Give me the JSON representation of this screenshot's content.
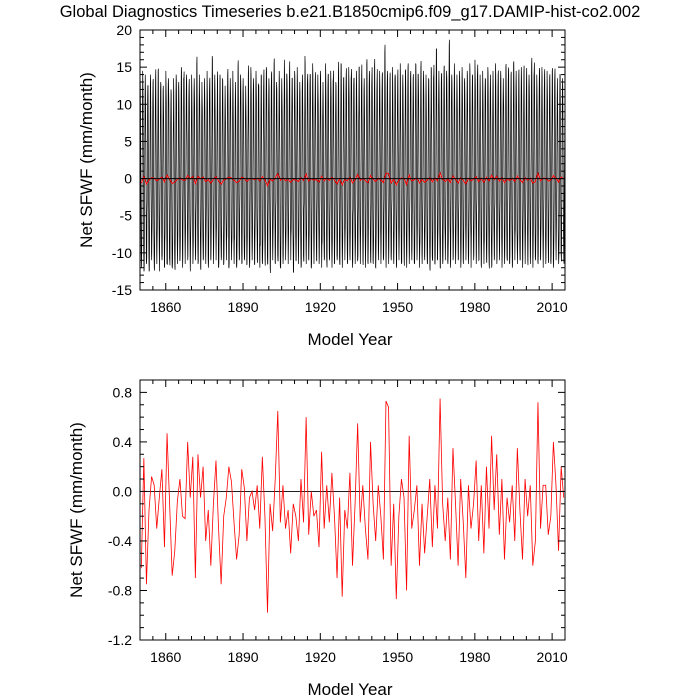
{
  "title": "Global Diagnostics Timeseries b.e21.B1850cmip6.f09_g17.DAMIP-hist-co2.002",
  "colors": {
    "monthly_line": "#000000",
    "annual_line": "#ff0000",
    "zero_line": "#000000",
    "frame": "#000000"
  },
  "chart_data": [
    {
      "id": "monthly",
      "type": "line",
      "xlabel": "Model Year",
      "ylabel": "Net SFWF (mm/month)",
      "xlim": [
        1850,
        2015
      ],
      "ylim": [
        -15,
        20
      ],
      "x_major_ticks": [
        1860,
        1890,
        1920,
        1950,
        1980,
        2010
      ],
      "y_major_ticks": [
        -15,
        -10,
        -5,
        0,
        5,
        10,
        15,
        20
      ],
      "reference_line_y": 0,
      "series": [
        {
          "role": "monthly",
          "color": "#000000",
          "sampling": "monthly",
          "x_start": 1850,
          "x_end": 2014,
          "seasonal_max_values": [
            13.5,
            14.5,
            14.0,
            12.5,
            14.0,
            13.0,
            13.5,
            14.5,
            13.0,
            12.5,
            14.5,
            13.5,
            12.0,
            13.5,
            14.0,
            13.0,
            15.0,
            13.5,
            14.0,
            12.5,
            14.0,
            13.5,
            15.5,
            14.0,
            13.0,
            13.5,
            14.5,
            13.0,
            16.5,
            14.0,
            13.5,
            14.0,
            13.5,
            12.5,
            14.0,
            13.5,
            14.5,
            13.0,
            15.0,
            14.0,
            13.5,
            12.5,
            14.0,
            15.0,
            13.5,
            14.5,
            12.5,
            14.0,
            13.5,
            15.0,
            13.5,
            14.0,
            15.5,
            13.0,
            14.5,
            13.5,
            16.0,
            14.0,
            14.5,
            13.5,
            14.5,
            15.0,
            13.0,
            14.0,
            16.5,
            13.5,
            14.0,
            15.5,
            13.5,
            14.0,
            14.5,
            13.0,
            15.5,
            14.0,
            14.5,
            13.5,
            13.0,
            14.5,
            15.5,
            13.5,
            14.0,
            15.0,
            14.0,
            13.5,
            14.5,
            15.0,
            14.0,
            13.5,
            15.5,
            14.5,
            14.0,
            15.0,
            13.5,
            14.5,
            14.0,
            17.0,
            14.5,
            13.5,
            15.0,
            14.0,
            13.5,
            15.5,
            14.0,
            14.5,
            15.0,
            14.0,
            13.5,
            15.5,
            14.0,
            15.0,
            14.5,
            14.0,
            13.5,
            15.0,
            14.0,
            17.5,
            14.5,
            14.0,
            15.0,
            14.5,
            18.0,
            14.0,
            15.5,
            14.0,
            14.5,
            15.0,
            13.5,
            14.5,
            15.5,
            14.0,
            16.0,
            14.5,
            14.0,
            14.5,
            13.5,
            15.0,
            14.0,
            14.5,
            15.5,
            14.0,
            14.5,
            13.5,
            15.0,
            14.5,
            14.0,
            15.5,
            14.5,
            14.0,
            15.0,
            14.5,
            13.5,
            14.0,
            15.5,
            14.5,
            14.0,
            14.5,
            15.0,
            14.0,
            14.5,
            13.5,
            14.5,
            14.0,
            13.5,
            14.0,
            13.5
          ],
          "seasonal_min_values": [
            -12.0,
            -12.5,
            -11.5,
            -12.5,
            -11.0,
            -12.0,
            -11.5,
            -12.5,
            -11.0,
            -12.0,
            -11.5,
            -11.0,
            -12.0,
            -12.0,
            -11.5,
            -11.0,
            -12.0,
            -11.5,
            -11.0,
            -12.5,
            -11.5,
            -11.0,
            -11.5,
            -12.0,
            -11.0,
            -11.5,
            -12.0,
            -11.0,
            -11.5,
            -11.0,
            -12.0,
            -11.0,
            -11.5,
            -11.0,
            -12.0,
            -11.0,
            -11.5,
            -12.0,
            -11.0,
            -11.5,
            -11.0,
            -11.5,
            -12.0,
            -11.0,
            -11.5,
            -11.0,
            -12.0,
            -11.5,
            -11.0,
            -11.5,
            -12.0,
            -11.0,
            -11.5,
            -11.0,
            -12.0,
            -11.5,
            -11.0,
            -11.5,
            -11.0,
            -12.5,
            -11.0,
            -11.5,
            -12.0,
            -11.0,
            -11.5,
            -11.0,
            -12.0,
            -11.5,
            -11.0,
            -11.5,
            -12.0,
            -11.0,
            -11.5,
            -11.0,
            -12.0,
            -11.5,
            -11.0,
            -11.5,
            -12.0,
            -11.0,
            -11.5,
            -11.0,
            -12.0,
            -11.5,
            -11.0,
            -11.5,
            -11.0,
            -12.0,
            -11.5,
            -11.0,
            -11.5,
            -12.0,
            -11.0,
            -11.5,
            -11.0,
            -12.0,
            -11.5,
            -11.0,
            -11.5,
            -12.0,
            -11.0,
            -11.5,
            -11.0,
            -12.0,
            -11.5,
            -11.0,
            -11.5,
            -11.0,
            -12.0,
            -11.5,
            -11.0,
            -11.5,
            -12.0,
            -11.0,
            -11.5,
            -11.0,
            -12.0,
            -11.5,
            -11.0,
            -11.5,
            -12.0,
            -11.0,
            -11.5,
            -11.0,
            -12.0,
            -11.5,
            -11.0,
            -11.5,
            -12.0,
            -11.0,
            -11.5,
            -11.0,
            -12.0,
            -11.5,
            -11.0,
            -11.5,
            -12.0,
            -11.0,
            -11.5,
            -11.0,
            -12.0,
            -11.5,
            -11.0,
            -11.5,
            -12.0,
            -11.0,
            -11.5,
            -11.0,
            -12.0,
            -11.5,
            -11.0,
            -11.5,
            -12.0,
            -11.0,
            -11.5,
            -11.0,
            -12.0,
            -11.5,
            -11.0,
            -11.5,
            -12.0,
            -11.0,
            -11.5,
            -10.5,
            -11.0
          ]
        },
        {
          "role": "annual-mean",
          "color": "#ff0000",
          "x_start": 1850,
          "x_end": 2014,
          "values": [
            -0.62,
            0.27,
            -0.75,
            -0.15,
            0.12,
            0.05,
            -0.3,
            -0.05,
            0.18,
            -0.45,
            0.47,
            -0.1,
            -0.68,
            -0.48,
            -0.08,
            0.1,
            -0.2,
            -0.22,
            0.4,
            -0.05,
            0.28,
            -0.7,
            0.3,
            -0.05,
            0.2,
            -0.4,
            -0.15,
            -0.6,
            -0.1,
            0.25,
            -0.3,
            -0.75,
            -0.2,
            -0.05,
            0.2,
            0.08,
            -0.25,
            -0.55,
            -0.35,
            0.18,
            0.03,
            -0.4,
            -0.05,
            0.0,
            -0.15,
            0.05,
            -0.3,
            0.28,
            -0.2,
            -0.98,
            -0.1,
            -0.32,
            0.1,
            0.65,
            -0.25,
            0.05,
            -0.3,
            -0.15,
            -0.5,
            -0.1,
            -0.2,
            -0.4,
            0.1,
            -0.25,
            0.6,
            -0.35,
            0.0,
            -0.2,
            -0.15,
            -0.45,
            0.32,
            -0.3,
            0.05,
            -0.25,
            0.15,
            -0.2,
            -0.7,
            -0.05,
            -0.85,
            -0.15,
            -0.3,
            0.15,
            -0.6,
            -0.1,
            0.55,
            -0.25,
            0.05,
            -0.3,
            -0.55,
            0.4,
            -0.1,
            -0.4,
            0.05,
            -0.2,
            -0.55,
            0.73,
            0.68,
            -0.6,
            -0.1,
            -0.87,
            -0.2,
            0.1,
            -0.05,
            -0.8,
            0.45,
            -0.3,
            -0.15,
            0.05,
            -0.6,
            -0.1,
            -0.5,
            -0.2,
            0.1,
            -0.45,
            0.05,
            -0.3,
            0.75,
            -0.1,
            -0.4,
            -0.05,
            -0.55,
            0.35,
            -0.1,
            -0.6,
            0.1,
            -0.25,
            -0.7,
            0.05,
            -0.3,
            -0.1,
            0.25,
            -0.4,
            0.05,
            -0.5,
            0.2,
            -0.3,
            0.45,
            -0.15,
            0.3,
            -0.35,
            0.1,
            -0.55,
            -0.05,
            -0.25,
            0.05,
            -0.4,
            0.35,
            -0.15,
            -0.55,
            0.1,
            -0.2,
            0.05,
            -0.6,
            -0.4,
            0.72,
            -0.3,
            0.05,
            0.05,
            -0.35,
            -0.2,
            0.4,
            0.05,
            -0.48,
            0.2,
            -0.05
          ]
        }
      ]
    },
    {
      "id": "annual",
      "type": "line",
      "xlabel": "Model Year",
      "ylabel": "Net SFWF (mm/month)",
      "xlim": [
        1850,
        2015
      ],
      "ylim": [
        -1.2,
        0.9
      ],
      "x_major_ticks": [
        1860,
        1890,
        1920,
        1950,
        1980,
        2010
      ],
      "y_major_ticks": [
        -1.2,
        -0.8,
        -0.4,
        0.0,
        0.4,
        0.8
      ],
      "y_tick_labels": [
        "-1.2",
        "-0.8",
        "-0.4",
        "0.0",
        "0.4",
        "0.8"
      ],
      "reference_line_y": 0,
      "series": [
        {
          "role": "annual-mean",
          "color": "#ff0000",
          "x_start": 1850,
          "x_end": 2014,
          "values": [
            -0.62,
            0.27,
            -0.75,
            -0.15,
            0.12,
            0.05,
            -0.3,
            -0.05,
            0.18,
            -0.45,
            0.47,
            -0.1,
            -0.68,
            -0.48,
            -0.08,
            0.1,
            -0.2,
            -0.22,
            0.4,
            -0.05,
            0.28,
            -0.7,
            0.3,
            -0.05,
            0.2,
            -0.4,
            -0.15,
            -0.6,
            -0.1,
            0.25,
            -0.3,
            -0.75,
            -0.2,
            -0.05,
            0.2,
            0.08,
            -0.25,
            -0.55,
            -0.35,
            0.18,
            0.03,
            -0.4,
            -0.05,
            0.0,
            -0.15,
            0.05,
            -0.3,
            0.28,
            -0.2,
            -0.98,
            -0.1,
            -0.32,
            0.1,
            0.65,
            -0.25,
            0.05,
            -0.3,
            -0.15,
            -0.5,
            -0.1,
            -0.2,
            -0.4,
            0.1,
            -0.25,
            0.6,
            -0.35,
            0.0,
            -0.2,
            -0.15,
            -0.45,
            0.32,
            -0.3,
            0.05,
            -0.25,
            0.15,
            -0.2,
            -0.7,
            -0.05,
            -0.85,
            -0.15,
            -0.3,
            0.15,
            -0.6,
            -0.1,
            0.55,
            -0.25,
            0.05,
            -0.3,
            -0.55,
            0.4,
            -0.1,
            -0.4,
            0.05,
            -0.2,
            -0.55,
            0.73,
            0.68,
            -0.6,
            -0.1,
            -0.87,
            -0.2,
            0.1,
            -0.05,
            -0.8,
            0.45,
            -0.3,
            -0.15,
            0.05,
            -0.6,
            -0.1,
            -0.5,
            -0.2,
            0.1,
            -0.45,
            0.05,
            -0.3,
            0.75,
            -0.1,
            -0.4,
            -0.05,
            -0.55,
            0.35,
            -0.1,
            -0.6,
            0.1,
            -0.25,
            -0.7,
            0.05,
            -0.3,
            -0.1,
            0.25,
            -0.4,
            0.05,
            -0.5,
            0.2,
            -0.3,
            0.45,
            -0.15,
            0.3,
            -0.35,
            0.1,
            -0.55,
            -0.05,
            -0.25,
            0.05,
            -0.4,
            0.35,
            -0.15,
            -0.55,
            0.1,
            -0.2,
            0.05,
            -0.6,
            -0.4,
            0.72,
            -0.3,
            0.05,
            0.05,
            -0.35,
            -0.2,
            0.4,
            0.05,
            -0.48,
            0.2,
            -0.05
          ]
        }
      ]
    }
  ]
}
